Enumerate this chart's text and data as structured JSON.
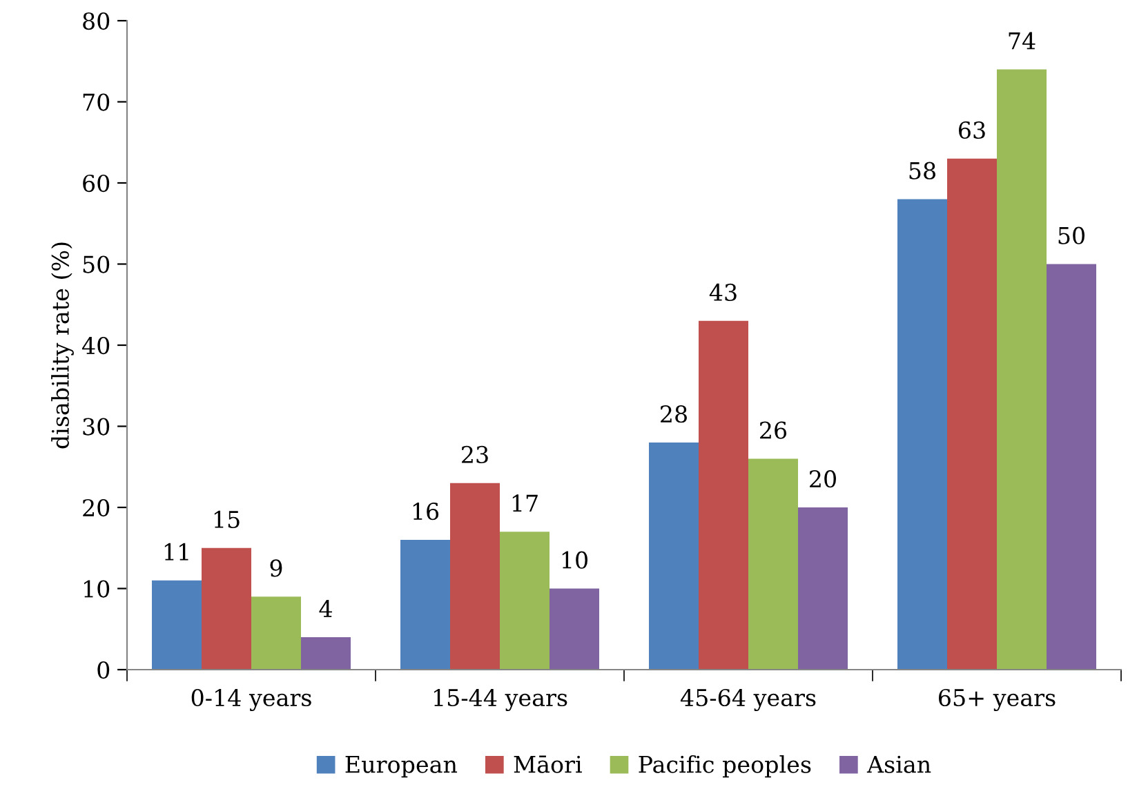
{
  "chart_data": {
    "type": "bar",
    "ylabel": "disability rate (%)",
    "categories": [
      "0-14 years",
      "15-44 years",
      "45-64 years",
      "65+ years"
    ],
    "series": [
      {
        "name": "European",
        "color": "#4f81bd",
        "values": [
          11,
          16,
          28,
          58
        ]
      },
      {
        "name": "Māori",
        "color": "#c0504d",
        "values": [
          15,
          23,
          43,
          63
        ]
      },
      {
        "name": "Pacific peoples",
        "color": "#9bbb59",
        "values": [
          9,
          17,
          26,
          74
        ]
      },
      {
        "name": "Asian",
        "color": "#8064a2",
        "values": [
          4,
          10,
          20,
          50
        ]
      }
    ],
    "ylim": [
      0,
      80
    ],
    "yticks": [
      0,
      10,
      20,
      30,
      40,
      50,
      60,
      70,
      80
    ],
    "data_labels": true,
    "grid": false,
    "legend": "bottom"
  }
}
